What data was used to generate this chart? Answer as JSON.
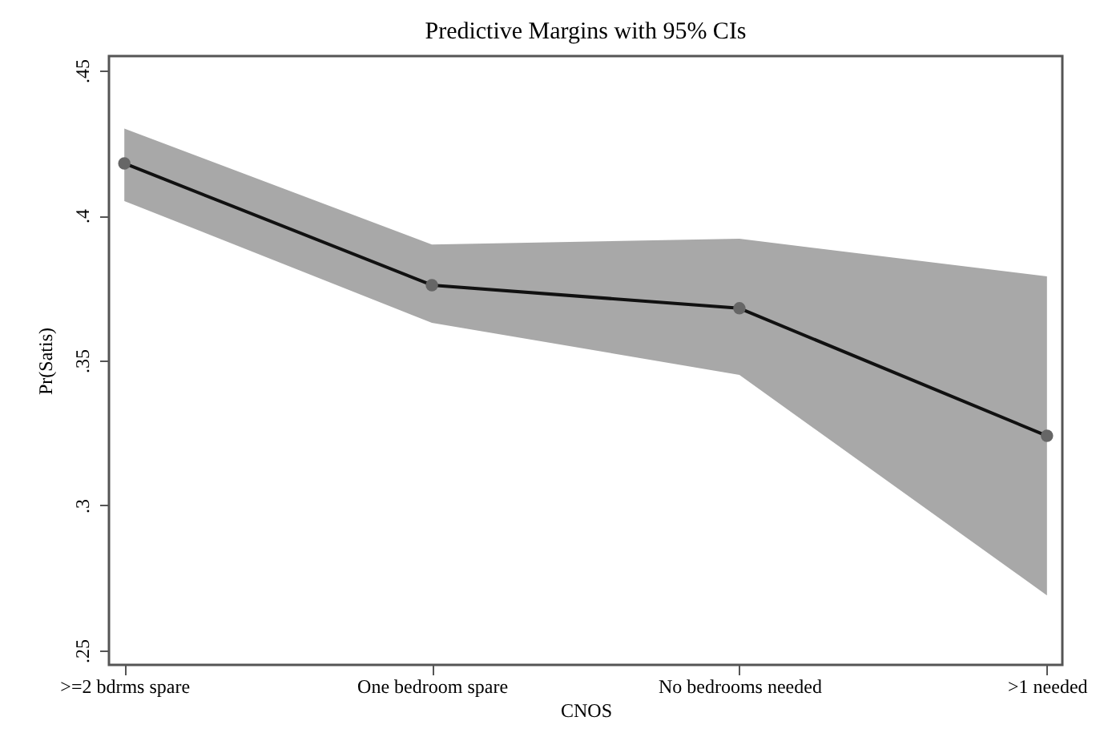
{
  "chart_data": {
    "type": "line",
    "title": "Predictive Margins with 95% CIs",
    "xlabel": "CNOS",
    "ylabel": "Pr(Satis)",
    "categories": [
      ">=2 bdrms spare",
      "One bedroom spare",
      "No bedrooms needed",
      ">1 needed"
    ],
    "series": [
      {
        "color": "#111111",
        "values": [
          0.418,
          0.376,
          0.368,
          0.324
        ],
        "lower": [
          0.405,
          0.363,
          0.345,
          0.269
        ],
        "upper": [
          0.43,
          0.39,
          0.392,
          0.379
        ]
      }
    ],
    "ylim": [
      0.245,
      0.455
    ],
    "yticks": [
      {
        "value": 0.25,
        "label": ".25"
      },
      {
        "value": 0.3,
        "label": ".3"
      },
      {
        "value": 0.35,
        "label": ".35"
      },
      {
        "value": 0.4,
        "label": ".4"
      },
      {
        "value": 0.45,
        "label": ".45"
      }
    ],
    "grid": false,
    "marker": "circle",
    "line_style": "solid"
  }
}
